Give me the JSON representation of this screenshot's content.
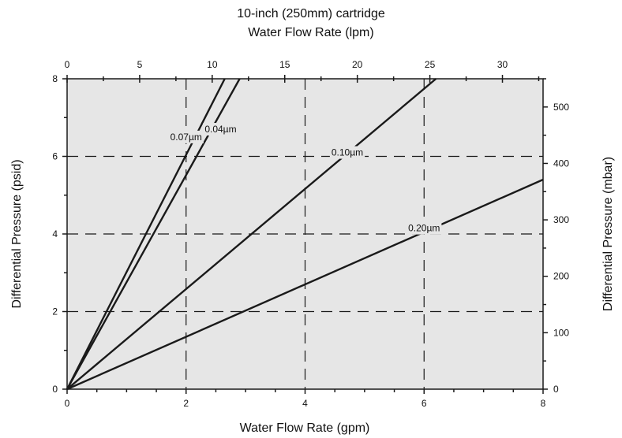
{
  "chart_data": {
    "type": "line",
    "title": "10-inch (250mm) cartridge",
    "xlabel": "Water Flow Rate (gpm)",
    "ylabel": "Differential Pressure (psid)",
    "x2label": "Water Flow Rate (lpm)",
    "y2label": "Differential Pressure (mbar)",
    "xlim": [
      0,
      8
    ],
    "ylim": [
      0,
      8
    ],
    "x2lim": [
      0,
      32.8
    ],
    "y2lim": [
      0,
      550
    ],
    "x_ticks": [
      0,
      2,
      4,
      6,
      8
    ],
    "y_ticks": [
      0,
      2,
      4,
      6,
      8
    ],
    "x2_ticks": [
      0,
      5,
      10,
      15,
      20,
      25,
      30
    ],
    "y2_ticks": [
      0,
      100,
      200,
      300,
      400,
      500
    ],
    "x_minor_step": 0.5,
    "y_minor_step": 1,
    "x2_minor_step": 2.5,
    "y2_minor_step": 50,
    "grid": {
      "x": [
        2,
        4,
        6
      ],
      "y": [
        2,
        4,
        6
      ],
      "style": "dashed"
    },
    "plot_background": "#e6e6e6",
    "line_color": "#1a1a1a",
    "series": [
      {
        "name": "0.07µm",
        "x": [
          0,
          2.65
        ],
        "y": [
          0,
          8
        ],
        "label_at": [
          2.0,
          6.5
        ]
      },
      {
        "name": "0.04µm",
        "x": [
          0,
          2.9
        ],
        "y": [
          0,
          8
        ],
        "label_at": [
          2.58,
          6.7
        ]
      },
      {
        "name": "0.10µm",
        "x": [
          0,
          6.2
        ],
        "y": [
          0,
          8
        ],
        "label_at": [
          4.71,
          6.1
        ]
      },
      {
        "name": "0.20µm",
        "x": [
          0,
          8
        ],
        "y": [
          0,
          5.4
        ],
        "label_at": [
          6.0,
          4.15
        ]
      }
    ]
  }
}
